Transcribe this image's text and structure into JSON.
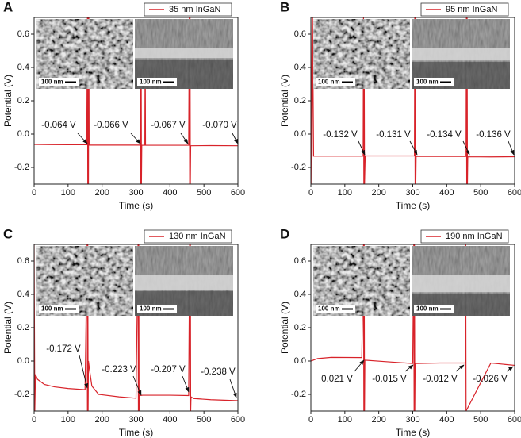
{
  "chart_data": [
    {
      "type": "line",
      "panel_label": "A",
      "xlabel": "Time (s)",
      "ylabel": "Potential (V)",
      "x": [
        0,
        50,
        100,
        155,
        157,
        158,
        159,
        160,
        161,
        162,
        200,
        300,
        312,
        313,
        314,
        315,
        316,
        317,
        326,
        327,
        328,
        400,
        455,
        457,
        458,
        459,
        460,
        461,
        520,
        600
      ],
      "series": [
        {
          "name": "35 nm InGaN",
          "color": "#d8232a",
          "values": [
            -0.062,
            -0.063,
            -0.064,
            -0.064,
            0.7,
            -0.3,
            0.7,
            -0.3,
            0.7,
            -0.066,
            -0.066,
            -0.066,
            -0.066,
            0.68,
            -0.3,
            0.68,
            -0.3,
            -0.067,
            -0.067,
            0.58,
            -0.067,
            -0.067,
            -0.067,
            0.7,
            -0.3,
            0.7,
            -0.3,
            -0.07,
            -0.069,
            -0.07
          ]
        }
      ],
      "xlim": [
        0,
        600
      ],
      "xticks": [
        0,
        100,
        200,
        300,
        400,
        500,
        600
      ],
      "ylim": [
        -0.3,
        0.7
      ],
      "yticks": [
        -0.2,
        {
          "value": 0,
          "label": "0.0"
        },
        0.2,
        0.4,
        0.6
      ],
      "inset_labels": [
        "100 nm",
        "100 nm"
      ],
      "annotations": [
        "-0.064 V",
        "-0.066 V",
        "-0.067 V",
        "-0.070 V"
      ]
    },
    {
      "type": "line",
      "panel_label": "B",
      "xlabel": "Time (s)",
      "ylabel": "Potential (V)",
      "x": [
        0,
        3,
        5,
        8,
        100,
        154,
        155,
        156,
        157,
        158,
        160,
        250,
        305,
        306,
        307,
        308,
        309,
        310,
        400,
        457,
        458,
        459,
        460,
        461,
        462,
        530,
        600
      ],
      "series": [
        {
          "name": "95 nm InGaN",
          "color": "#d8232a",
          "values": [
            0.7,
            -0.3,
            0.7,
            -0.132,
            -0.132,
            -0.132,
            0.7,
            -0.3,
            0.55,
            -0.3,
            -0.131,
            -0.131,
            -0.131,
            0.7,
            -0.3,
            0.7,
            -0.3,
            -0.134,
            -0.134,
            -0.134,
            0.7,
            -0.3,
            0.7,
            -0.3,
            -0.136,
            -0.137,
            -0.136
          ]
        }
      ],
      "xlim": [
        0,
        600
      ],
      "xticks": [
        0,
        100,
        200,
        300,
        400,
        500,
        600
      ],
      "ylim": [
        -0.3,
        0.7
      ],
      "yticks": [
        -0.2,
        {
          "value": 0,
          "label": "0.0"
        },
        0.2,
        0.4,
        0.6
      ],
      "inset_labels": [
        "100 nm",
        "100 nm"
      ],
      "annotations": [
        "-0.132 V",
        "-0.131 V",
        "-0.134 V",
        "-0.136 V"
      ]
    },
    {
      "type": "line",
      "panel_label": "C",
      "xlabel": "Time (s)",
      "ylabel": "Potential (V)",
      "x": [
        0,
        2,
        4,
        10,
        30,
        60,
        100,
        150,
        156,
        157,
        158,
        159,
        160,
        163,
        170,
        190,
        250,
        300,
        306,
        307,
        308,
        309,
        310,
        320,
        400,
        455,
        458,
        459,
        460,
        461,
        462,
        470,
        520,
        600
      ],
      "series": [
        {
          "name": "130 nm InGaN",
          "color": "#d8232a",
          "values": [
            0.7,
            -0.3,
            -0.08,
            -0.11,
            -0.14,
            -0.155,
            -0.165,
            -0.172,
            0.7,
            -0.3,
            0.7,
            -0.3,
            0.0,
            -0.05,
            -0.15,
            -0.2,
            -0.215,
            -0.223,
            0.7,
            -0.3,
            0.7,
            -0.3,
            -0.207,
            -0.205,
            -0.205,
            -0.207,
            0.7,
            -0.3,
            0.7,
            -0.3,
            -0.215,
            -0.225,
            -0.232,
            -0.238
          ]
        }
      ],
      "xlim": [
        0,
        600
      ],
      "xticks": [
        0,
        100,
        200,
        300,
        400,
        500,
        600
      ],
      "ylim": [
        -0.3,
        0.7
      ],
      "yticks": [
        -0.2,
        {
          "value": 0,
          "label": "0.0"
        },
        0.2,
        0.4,
        0.6
      ],
      "inset_labels": [
        "100 nm",
        "100 nm"
      ],
      "annotations": [
        "-0.172 V",
        "-0.223 V",
        "-0.207 V",
        "-0.238 V"
      ]
    },
    {
      "type": "line",
      "panel_label": "D",
      "xlabel": "Time (s)",
      "ylabel": "Potential (V)",
      "x": [
        0,
        20,
        60,
        150,
        155,
        156,
        157,
        158,
        159,
        230,
        300,
        303,
        304,
        305,
        306,
        307,
        380,
        455,
        456,
        457,
        530,
        600
      ],
      "series": [
        {
          "name": "190 nm InGaN",
          "color": "#d8232a",
          "values": [
            0.0,
            0.015,
            0.022,
            0.021,
            0.7,
            -0.3,
            0.7,
            -0.3,
            0.005,
            -0.005,
            -0.015,
            0.7,
            -0.3,
            0.7,
            -0.3,
            -0.015,
            -0.012,
            -0.012,
            0.7,
            -0.3,
            -0.012,
            -0.026
          ]
        }
      ],
      "xlim": [
        0,
        600
      ],
      "xticks": [
        0,
        100,
        200,
        300,
        400,
        500,
        600
      ],
      "ylim": [
        -0.3,
        0.7
      ],
      "yticks": [
        -0.2,
        {
          "value": 0,
          "label": "0.0"
        },
        0.2,
        0.4,
        0.6
      ],
      "inset_labels": [
        "100 nm",
        "100 nm"
      ],
      "annotations": [
        "0.021 V",
        "-0.015 V",
        "-0.012 V",
        "-0.026 V"
      ]
    }
  ]
}
